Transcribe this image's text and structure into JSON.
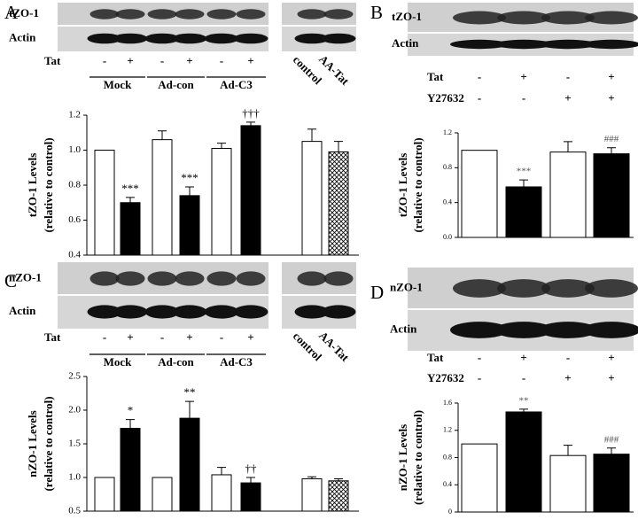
{
  "chart_data": [
    {
      "type": "bar",
      "panel": "A",
      "blot_labels": [
        "tZO-1",
        "Actin"
      ],
      "treatments": [
        {
          "name": "Tat",
          "values": [
            "-",
            "+",
            "-",
            "+",
            "-",
            "+",
            null,
            null
          ]
        }
      ],
      "groups": [
        "Mock",
        "Ad-con",
        "Ad-C3"
      ],
      "categories": [
        null,
        null,
        null,
        null,
        null,
        null,
        "control",
        "AA-Tat"
      ],
      "ylabel": [
        "tZO-1 Levels",
        "(relative to control)"
      ],
      "values": [
        1.0,
        0.7,
        1.06,
        0.74,
        1.01,
        1.14,
        1.05,
        0.99
      ],
      "errors": [
        null,
        0.03,
        0.05,
        0.05,
        0.03,
        0.02,
        0.07,
        0.06
      ],
      "significance": [
        null,
        "***",
        null,
        "***",
        null,
        "†††",
        null,
        null
      ],
      "fills": [
        "white",
        "black",
        "white",
        "black",
        "white",
        "black",
        "white",
        "crosshatch"
      ],
      "ylim": [
        0.4,
        1.2
      ],
      "yticks": [
        0.4,
        0.6,
        0.8,
        {
          "value": 1.0,
          "label": "1.0"
        },
        1.2
      ]
    },
    {
      "type": "bar",
      "panel": "B",
      "blot_labels": [
        "tZO-1",
        "Actin"
      ],
      "treatments": [
        {
          "name": "Tat",
          "values": [
            "-",
            "+",
            "-",
            "+"
          ]
        },
        {
          "name": "Y27632",
          "values": [
            "-",
            "-",
            "+",
            "+"
          ]
        }
      ],
      "ylabel": [
        "tZO-1 Levels",
        "(relative to control)"
      ],
      "values": [
        1.0,
        0.58,
        0.98,
        0.96
      ],
      "errors": [
        null,
        0.08,
        0.12,
        0.07
      ],
      "significance": [
        null,
        "***",
        null,
        "###"
      ],
      "fills": [
        "white",
        "black",
        "white",
        "black"
      ],
      "ylim": [
        0,
        1.2
      ],
      "yticks": [
        {
          "value": 0,
          "label": "0.0"
        },
        0.4,
        0.8,
        1.2
      ]
    },
    {
      "type": "bar",
      "panel": "C",
      "blot_labels": [
        "nZO-1",
        "Actin"
      ],
      "treatments": [
        {
          "name": "Tat",
          "values": [
            "-",
            "+",
            "-",
            "+",
            "-",
            "+",
            null,
            null
          ]
        }
      ],
      "groups": [
        "Mock",
        "Ad-con",
        "Ad-C3"
      ],
      "categories": [
        null,
        null,
        null,
        null,
        null,
        null,
        "control",
        "AA-Tat"
      ],
      "ylabel": [
        "nZO-1 Levels",
        "(relative to control)"
      ],
      "values": [
        1.0,
        1.73,
        1.0,
        1.88,
        1.04,
        0.92,
        0.98,
        0.95
      ],
      "errors": [
        null,
        0.13,
        null,
        0.25,
        0.11,
        0.08,
        0.03,
        0.03
      ],
      "significance": [
        null,
        "*",
        null,
        "**",
        null,
        "††",
        null,
        null
      ],
      "fills": [
        "white",
        "black",
        "white",
        "black",
        "white",
        "black",
        "white",
        "crosshatch"
      ],
      "ylim": [
        0.5,
        2.5
      ],
      "yticks": [
        0.5,
        {
          "value": 1.0,
          "label": "1.0"
        },
        1.5,
        {
          "value": 2.0,
          "label": "2.0"
        },
        2.5
      ]
    },
    {
      "type": "bar",
      "panel": "D",
      "blot_labels": [
        "nZO-1",
        "Actin"
      ],
      "treatments": [
        {
          "name": "Tat",
          "values": [
            "-",
            "+",
            "-",
            "+"
          ]
        },
        {
          "name": "Y27632",
          "values": [
            "-",
            "-",
            "+",
            "+"
          ]
        }
      ],
      "ylabel": [
        "nZO-1 Levels",
        "(relative to control)"
      ],
      "values": [
        1.0,
        1.47,
        0.83,
        0.85
      ],
      "errors": [
        null,
        0.04,
        0.15,
        0.09
      ],
      "significance": [
        null,
        "**",
        null,
        "###"
      ],
      "fills": [
        "white",
        "black",
        "white",
        "black"
      ],
      "ylim": [
        0,
        1.6
      ],
      "yticks": [
        0,
        0.4,
        0.8,
        1.2,
        1.6
      ]
    }
  ]
}
